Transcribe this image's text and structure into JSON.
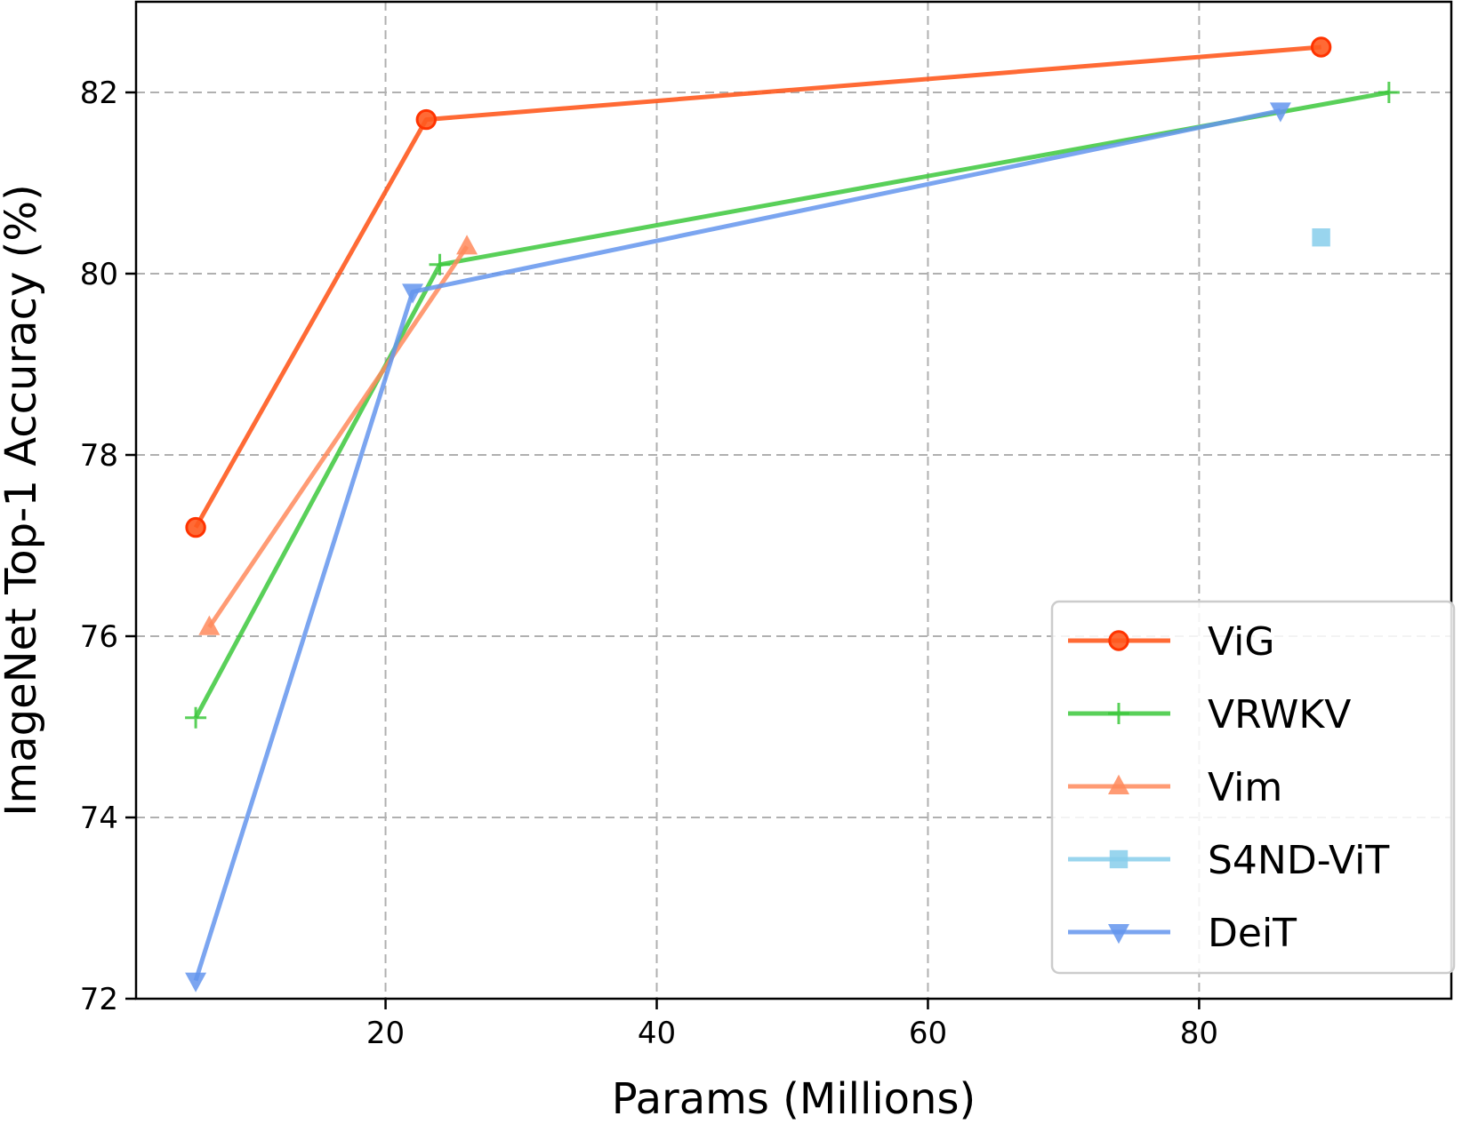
{
  "chart_data": {
    "type": "line",
    "title": "",
    "xlabel": "Params (Millions)",
    "ylabel": "ImageNet Top-1 Accuracy (%)",
    "xlim": [
      1.6,
      98.6
    ],
    "ylim": [
      72,
      83
    ],
    "xticks": [
      20,
      40,
      60,
      80
    ],
    "yticks": [
      72,
      74,
      76,
      78,
      80,
      82
    ],
    "xtick_labels": [
      "20",
      "40",
      "60",
      "80"
    ],
    "ytick_labels": [
      "72",
      "74",
      "76",
      "78",
      "80",
      "82"
    ],
    "grid": true,
    "legend_position": "bottom-right",
    "series": [
      {
        "name": "ViG",
        "color": "#ff5a1f",
        "marker": "circle",
        "opacity": 0.9,
        "x": [
          6,
          23,
          89
        ],
        "y": [
          77.2,
          81.7,
          82.5
        ]
      },
      {
        "name": "VRWKV",
        "color": "#3cc83c",
        "marker": "plus",
        "opacity": 0.85,
        "x": [
          6,
          24,
          94
        ],
        "y": [
          75.1,
          80.1,
          82.0
        ]
      },
      {
        "name": "Vim",
        "color": "#ff8a5c",
        "marker": "triangle-up",
        "opacity": 0.85,
        "x": [
          7,
          26
        ],
        "y": [
          76.1,
          80.3
        ]
      },
      {
        "name": "S4ND-ViT",
        "color": "#87ceeb",
        "marker": "square",
        "opacity": 0.85,
        "x": [
          89
        ],
        "y": [
          80.4
        ]
      },
      {
        "name": "DeiT",
        "color": "#6495ed",
        "marker": "triangle-down",
        "opacity": 0.85,
        "x": [
          6,
          22,
          86
        ],
        "y": [
          72.2,
          79.8,
          81.8
        ]
      }
    ]
  }
}
